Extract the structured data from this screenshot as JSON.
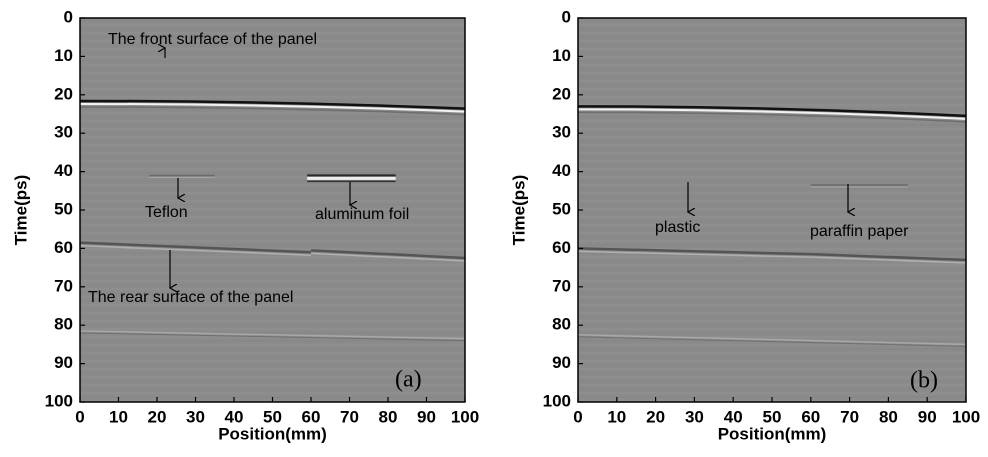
{
  "chart_data": [
    {
      "type": "bscan",
      "panel_label": "(a)",
      "xlabel": "Position(mm)",
      "ylabel": "Time(ps)",
      "xlim": [
        0,
        100
      ],
      "xticks": [
        0,
        10,
        20,
        30,
        40,
        50,
        60,
        70,
        80,
        90,
        100
      ],
      "ylim": [
        0,
        100
      ],
      "yticks": [
        0,
        10,
        20,
        30,
        40,
        50,
        60,
        70,
        80,
        90,
        100
      ],
      "y_inverted": true,
      "annotations": [
        "The front surface of the panel",
        "Teflon",
        "aluminum foil",
        "The rear surface of the panel"
      ]
    },
    {
      "type": "bscan",
      "panel_label": "(b)",
      "xlabel": "Position(mm)",
      "ylabel": "Time(ps)",
      "xlim": [
        0,
        100
      ],
      "xticks": [
        0,
        10,
        20,
        30,
        40,
        50,
        60,
        70,
        80,
        90,
        100
      ],
      "ylim": [
        0,
        100
      ],
      "yticks": [
        0,
        10,
        20,
        30,
        40,
        50,
        60,
        70,
        80,
        90,
        100
      ],
      "y_inverted": true,
      "annotations": [
        "plastic",
        "paraffin paper"
      ]
    }
  ]
}
